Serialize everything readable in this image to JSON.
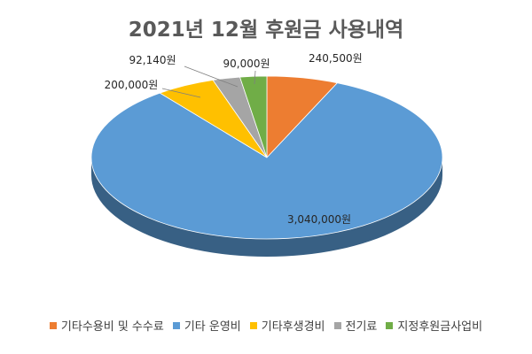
{
  "chart_data": {
    "type": "pie",
    "title": "2021년 12월 후원금 사용내역",
    "legend_position": "bottom",
    "categories": [
      "기타수용비 및 수수료",
      "기타 운영비",
      "기타후생경비",
      "전기료",
      "지정후원금사업비"
    ],
    "values": [
      240500,
      3040000,
      200000,
      92140,
      90000
    ],
    "data_labels": [
      "240,500원",
      "3,040,000원",
      "200,000원",
      "92,140원",
      "90,000원"
    ],
    "colors": [
      "#ED7D31",
      "#5B9BD5",
      "#FFC000",
      "#A5A5A5",
      "#70AD47"
    ]
  }
}
